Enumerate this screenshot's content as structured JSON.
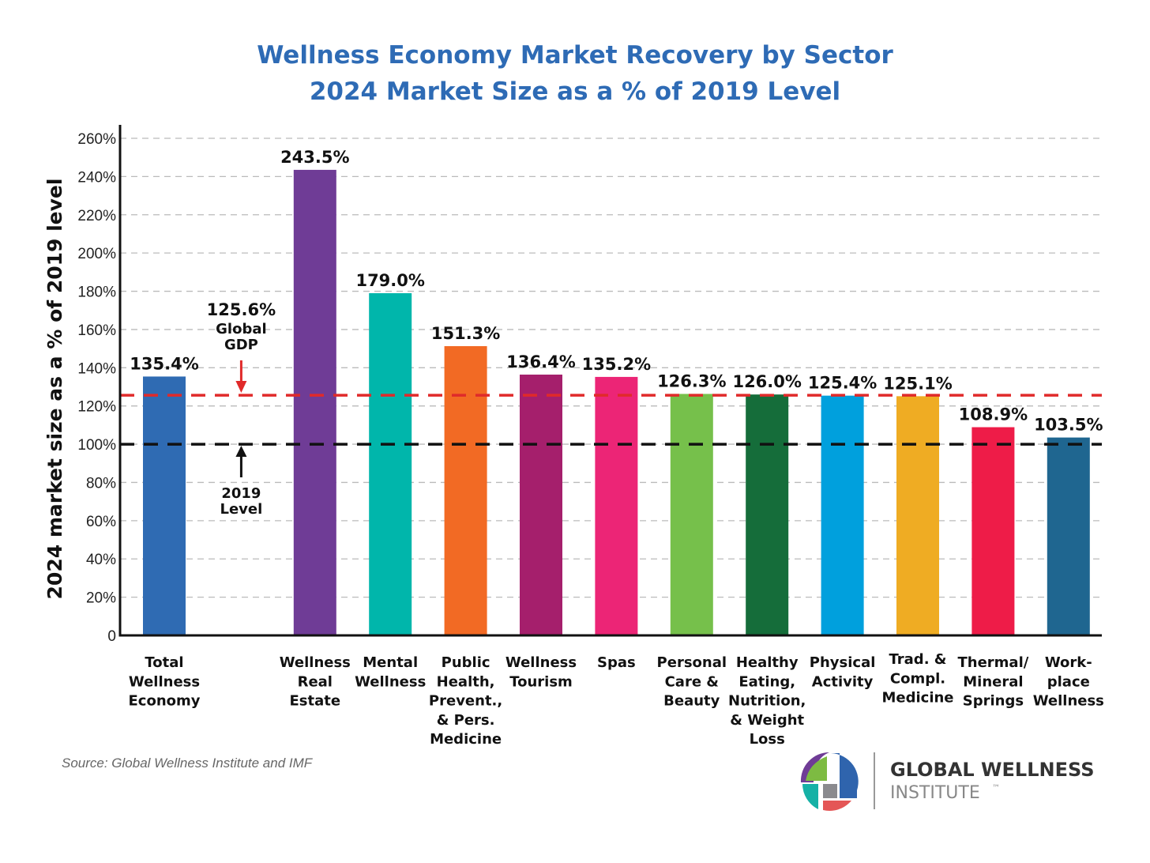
{
  "chart_data": {
    "type": "bar",
    "title": "Wellness Economy Market Recovery by Sector",
    "subtitle": "2024 Market Size as a % of 2019 Level",
    "xlabel": "",
    "ylabel": "2024 market size as a % of 2019 level",
    "ylim": [
      0,
      260
    ],
    "yticks": [
      0,
      20,
      40,
      60,
      80,
      100,
      120,
      140,
      160,
      180,
      200,
      220,
      240,
      260
    ],
    "ytick_labels": [
      "0",
      "20%",
      "40%",
      "60%",
      "80%",
      "100%",
      "120%",
      "140%",
      "160%",
      "180%",
      "200%",
      "220%",
      "240%",
      "260%"
    ],
    "grid": true,
    "categories": [
      [
        "Total",
        "Wellness",
        "Economy"
      ],
      [
        "Wellness",
        "Real",
        "Estate"
      ],
      [
        "Mental",
        "Wellness"
      ],
      [
        "Public",
        "Health,",
        "Prevent.,",
        "& Pers.",
        "Medicine"
      ],
      [
        "Wellness",
        "Tourism"
      ],
      [
        "Spas"
      ],
      [
        "Personal",
        "Care &",
        "Beauty"
      ],
      [
        "Healthy",
        "Eating,",
        "Nutrition,",
        "& Weight",
        "Loss"
      ],
      [
        "Physical",
        "Activity"
      ],
      [
        "Trad. &",
        "Compl.",
        "Medicine"
      ],
      [
        "Thermal/",
        "Mineral",
        "Springs"
      ],
      [
        "Work-",
        "place",
        "Wellness"
      ]
    ],
    "values": [
      135.4,
      243.5,
      179.0,
      151.3,
      136.4,
      135.2,
      126.3,
      126.0,
      125.4,
      125.1,
      108.9,
      103.5
    ],
    "value_labels": [
      "135.4%",
      "243.5%",
      "179.0%",
      "151.3%",
      "136.4%",
      "135.2%",
      "126.3%",
      "126.0%",
      "125.4%",
      "125.1%",
      "108.9%",
      "103.5%"
    ],
    "colors": [
      "#2f6bb3",
      "#6f3c96",
      "#00b6ab",
      "#f26a24",
      "#a51f6c",
      "#ec2576",
      "#76c04b",
      "#156d3a",
      "#00a0dd",
      "#efac23",
      "#ee1c48",
      "#1f6690"
    ],
    "reference_lines": [
      {
        "value": 125.6,
        "label": "125.6%",
        "sublabel": [
          "Global",
          "GDP"
        ],
        "color": "#e02a2a"
      },
      {
        "value": 100,
        "label": "",
        "sublabel": [
          "2019",
          "Level"
        ],
        "color": "#111111"
      }
    ]
  },
  "source": "Source: Global Wellness Institute and IMF",
  "logo": {
    "line1": "GLOBAL WELLNESS",
    "line2": "INSTITUTE",
    "tm": "™"
  }
}
